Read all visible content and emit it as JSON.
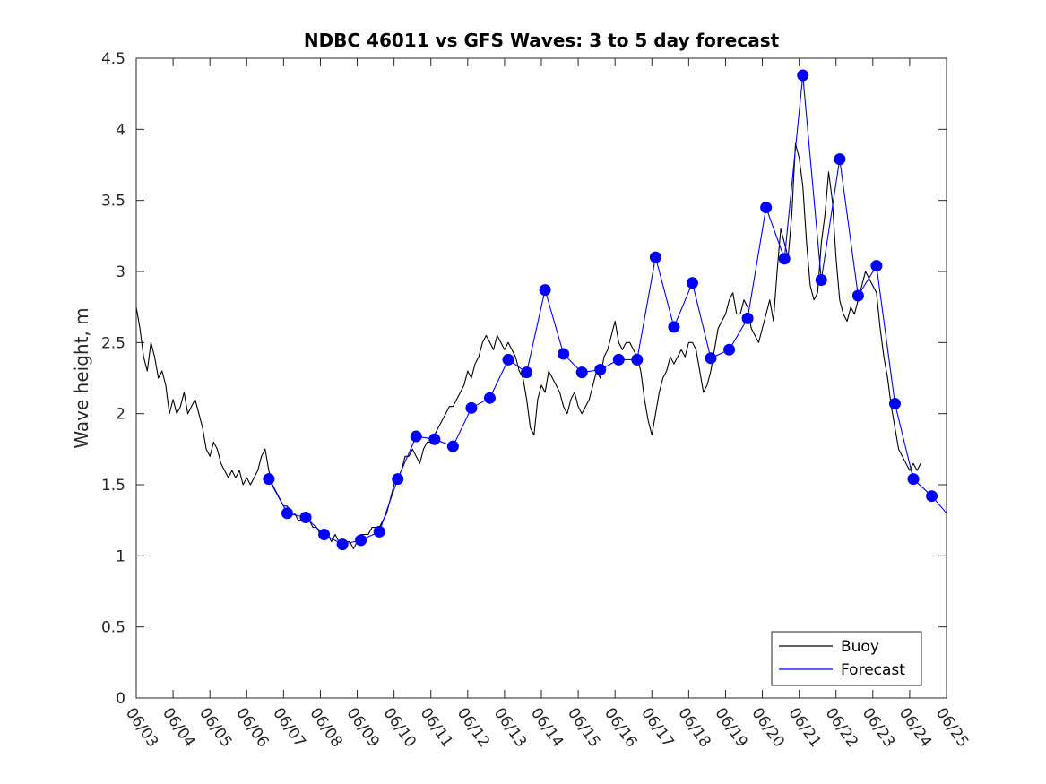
{
  "chart_data": {
    "type": "line",
    "title": "NDBC 46011 vs GFS Waves: 3 to 5 day forecast",
    "xlabel": "",
    "ylabel": "Wave height, m",
    "xlim": [
      0,
      22
    ],
    "ylim": [
      0,
      4.5
    ],
    "grid": false,
    "legend_position": "bottom-right",
    "x_tick_labels": [
      "06/03",
      "06/04",
      "06/05",
      "06/06",
      "06/07",
      "06/08",
      "06/09",
      "06/10",
      "06/11",
      "06/12",
      "06/13",
      "06/14",
      "06/15",
      "06/16",
      "06/17",
      "06/18",
      "06/19",
      "06/20",
      "06/21",
      "06/22",
      "06/23",
      "06/24",
      "06/25"
    ],
    "y_ticks": [
      0,
      0.5,
      1,
      1.5,
      2,
      2.5,
      3,
      3.5,
      4,
      4.5
    ],
    "y_tick_labels": [
      "0",
      "0.5",
      "1",
      "1.5",
      "2",
      "2.5",
      "3",
      "3.5",
      "4",
      "4.5"
    ],
    "legend": [
      "Buoy",
      "Forecast"
    ],
    "colors": {
      "buoy": "#000000",
      "forecast": "#0000ff",
      "axis": "#262626"
    },
    "series": [
      {
        "name": "Buoy",
        "color": "#000000",
        "points": [
          [
            0.0,
            2.75
          ],
          [
            0.1,
            2.6
          ],
          [
            0.2,
            2.4
          ],
          [
            0.3,
            2.3
          ],
          [
            0.4,
            2.5
          ],
          [
            0.5,
            2.4
          ],
          [
            0.6,
            2.25
          ],
          [
            0.7,
            2.3
          ],
          [
            0.8,
            2.2
          ],
          [
            0.9,
            2.0
          ],
          [
            1.0,
            2.1
          ],
          [
            1.1,
            2.0
          ],
          [
            1.2,
            2.05
          ],
          [
            1.3,
            2.15
          ],
          [
            1.4,
            2.0
          ],
          [
            1.5,
            2.05
          ],
          [
            1.6,
            2.1
          ],
          [
            1.7,
            2.0
          ],
          [
            1.8,
            1.9
          ],
          [
            1.9,
            1.75
          ],
          [
            2.0,
            1.7
          ],
          [
            2.1,
            1.8
          ],
          [
            2.2,
            1.75
          ],
          [
            2.3,
            1.65
          ],
          [
            2.4,
            1.6
          ],
          [
            2.5,
            1.55
          ],
          [
            2.6,
            1.6
          ],
          [
            2.7,
            1.55
          ],
          [
            2.8,
            1.6
          ],
          [
            2.9,
            1.5
          ],
          [
            3.0,
            1.55
          ],
          [
            3.1,
            1.5
          ],
          [
            3.2,
            1.55
          ],
          [
            3.3,
            1.6
          ],
          [
            3.4,
            1.7
          ],
          [
            3.5,
            1.75
          ],
          [
            3.6,
            1.6
          ],
          [
            3.7,
            1.5
          ],
          [
            3.8,
            1.45
          ],
          [
            3.9,
            1.4
          ],
          [
            4.0,
            1.35
          ],
          [
            4.1,
            1.35
          ],
          [
            4.2,
            1.3
          ],
          [
            4.3,
            1.3
          ],
          [
            4.4,
            1.25
          ],
          [
            4.5,
            1.25
          ],
          [
            4.6,
            1.3
          ],
          [
            4.7,
            1.25
          ],
          [
            4.8,
            1.2
          ],
          [
            4.9,
            1.2
          ],
          [
            5.0,
            1.15
          ],
          [
            5.1,
            1.15
          ],
          [
            5.2,
            1.15
          ],
          [
            5.3,
            1.1
          ],
          [
            5.4,
            1.15
          ],
          [
            5.5,
            1.1
          ],
          [
            5.6,
            1.1
          ],
          [
            5.7,
            1.1
          ],
          [
            5.8,
            1.1
          ],
          [
            5.9,
            1.05
          ],
          [
            6.0,
            1.1
          ],
          [
            6.1,
            1.15
          ],
          [
            6.2,
            1.15
          ],
          [
            6.3,
            1.15
          ],
          [
            6.4,
            1.2
          ],
          [
            6.5,
            1.2
          ],
          [
            6.6,
            1.2
          ],
          [
            6.7,
            1.25
          ],
          [
            6.8,
            1.3
          ],
          [
            6.9,
            1.4
          ],
          [
            7.0,
            1.5
          ],
          [
            7.1,
            1.55
          ],
          [
            7.2,
            1.6
          ],
          [
            7.3,
            1.7
          ],
          [
            7.4,
            1.7
          ],
          [
            7.5,
            1.75
          ],
          [
            7.6,
            1.7
          ],
          [
            7.7,
            1.65
          ],
          [
            7.8,
            1.75
          ],
          [
            7.9,
            1.8
          ],
          [
            8.0,
            1.8
          ],
          [
            8.1,
            1.85
          ],
          [
            8.2,
            1.9
          ],
          [
            8.3,
            1.95
          ],
          [
            8.4,
            2.0
          ],
          [
            8.5,
            2.05
          ],
          [
            8.6,
            2.05
          ],
          [
            8.7,
            2.1
          ],
          [
            8.8,
            2.15
          ],
          [
            8.9,
            2.2
          ],
          [
            9.0,
            2.3
          ],
          [
            9.1,
            2.25
          ],
          [
            9.2,
            2.35
          ],
          [
            9.3,
            2.4
          ],
          [
            9.4,
            2.5
          ],
          [
            9.5,
            2.55
          ],
          [
            9.6,
            2.5
          ],
          [
            9.7,
            2.45
          ],
          [
            9.8,
            2.55
          ],
          [
            9.9,
            2.5
          ],
          [
            10.0,
            2.45
          ],
          [
            10.1,
            2.5
          ],
          [
            10.2,
            2.45
          ],
          [
            10.3,
            2.4
          ],
          [
            10.4,
            2.3
          ],
          [
            10.5,
            2.25
          ],
          [
            10.6,
            2.1
          ],
          [
            10.7,
            1.9
          ],
          [
            10.8,
            1.85
          ],
          [
            10.9,
            2.1
          ],
          [
            11.0,
            2.2
          ],
          [
            11.1,
            2.15
          ],
          [
            11.2,
            2.3
          ],
          [
            11.3,
            2.25
          ],
          [
            11.4,
            2.2
          ],
          [
            11.5,
            2.15
          ],
          [
            11.6,
            2.05
          ],
          [
            11.7,
            2.0
          ],
          [
            11.8,
            2.1
          ],
          [
            11.9,
            2.15
          ],
          [
            12.0,
            2.05
          ],
          [
            12.1,
            2.0
          ],
          [
            12.2,
            2.05
          ],
          [
            12.3,
            2.1
          ],
          [
            12.4,
            2.2
          ],
          [
            12.5,
            2.3
          ],
          [
            12.6,
            2.25
          ],
          [
            12.7,
            2.4
          ],
          [
            12.8,
            2.45
          ],
          [
            12.9,
            2.55
          ],
          [
            13.0,
            2.65
          ],
          [
            13.1,
            2.5
          ],
          [
            13.2,
            2.45
          ],
          [
            13.3,
            2.5
          ],
          [
            13.4,
            2.5
          ],
          [
            13.5,
            2.45
          ],
          [
            13.6,
            2.4
          ],
          [
            13.7,
            2.3
          ],
          [
            13.8,
            2.1
          ],
          [
            13.9,
            1.95
          ],
          [
            14.0,
            1.85
          ],
          [
            14.1,
            2.0
          ],
          [
            14.2,
            2.15
          ],
          [
            14.3,
            2.25
          ],
          [
            14.4,
            2.3
          ],
          [
            14.5,
            2.4
          ],
          [
            14.6,
            2.35
          ],
          [
            14.7,
            2.4
          ],
          [
            14.8,
            2.45
          ],
          [
            14.9,
            2.4
          ],
          [
            15.0,
            2.5
          ],
          [
            15.1,
            2.5
          ],
          [
            15.2,
            2.45
          ],
          [
            15.3,
            2.3
          ],
          [
            15.4,
            2.15
          ],
          [
            15.5,
            2.2
          ],
          [
            15.6,
            2.3
          ],
          [
            15.7,
            2.45
          ],
          [
            15.8,
            2.6
          ],
          [
            15.9,
            2.65
          ],
          [
            16.0,
            2.7
          ],
          [
            16.1,
            2.8
          ],
          [
            16.2,
            2.85
          ],
          [
            16.3,
            2.7
          ],
          [
            16.4,
            2.7
          ],
          [
            16.5,
            2.8
          ],
          [
            16.6,
            2.75
          ],
          [
            16.7,
            2.6
          ],
          [
            16.8,
            2.55
          ],
          [
            16.9,
            2.5
          ],
          [
            17.0,
            2.6
          ],
          [
            17.1,
            2.7
          ],
          [
            17.2,
            2.8
          ],
          [
            17.3,
            2.65
          ],
          [
            17.4,
            3.0
          ],
          [
            17.5,
            3.3
          ],
          [
            17.6,
            3.2
          ],
          [
            17.7,
            3.1
          ],
          [
            17.8,
            3.4
          ],
          [
            17.9,
            3.9
          ],
          [
            18.0,
            3.8
          ],
          [
            18.1,
            3.6
          ],
          [
            18.2,
            3.2
          ],
          [
            18.3,
            2.9
          ],
          [
            18.4,
            2.8
          ],
          [
            18.5,
            2.85
          ],
          [
            18.6,
            3.2
          ],
          [
            18.7,
            3.4
          ],
          [
            18.8,
            3.7
          ],
          [
            18.9,
            3.5
          ],
          [
            19.0,
            3.1
          ],
          [
            19.1,
            2.8
          ],
          [
            19.2,
            2.7
          ],
          [
            19.3,
            2.65
          ],
          [
            19.4,
            2.75
          ],
          [
            19.5,
            2.7
          ],
          [
            19.6,
            2.8
          ],
          [
            19.7,
            2.9
          ],
          [
            19.8,
            3.0
          ],
          [
            19.9,
            2.95
          ],
          [
            20.0,
            2.9
          ],
          [
            20.1,
            2.85
          ],
          [
            20.2,
            2.6
          ],
          [
            20.3,
            2.4
          ],
          [
            20.4,
            2.25
          ],
          [
            20.5,
            2.05
          ],
          [
            20.6,
            1.9
          ],
          [
            20.7,
            1.75
          ],
          [
            20.8,
            1.7
          ],
          [
            20.9,
            1.65
          ],
          [
            21.0,
            1.6
          ],
          [
            21.1,
            1.65
          ],
          [
            21.2,
            1.6
          ],
          [
            21.3,
            1.65
          ]
        ]
      },
      {
        "name": "Forecast",
        "color": "#0000ff",
        "points": [
          [
            3.6,
            1.54
          ],
          [
            4.1,
            1.3
          ],
          [
            4.6,
            1.27
          ],
          [
            5.1,
            1.15
          ],
          [
            5.6,
            1.08
          ],
          [
            6.1,
            1.11
          ],
          [
            6.6,
            1.17
          ],
          [
            7.1,
            1.54
          ],
          [
            7.6,
            1.84
          ],
          [
            8.1,
            1.82
          ],
          [
            8.6,
            1.77
          ],
          [
            9.1,
            2.04
          ],
          [
            9.6,
            2.11
          ],
          [
            10.1,
            2.38
          ],
          [
            10.6,
            2.29
          ],
          [
            11.1,
            2.87
          ],
          [
            11.6,
            2.42
          ],
          [
            12.1,
            2.29
          ],
          [
            12.6,
            2.31
          ],
          [
            13.1,
            2.38
          ],
          [
            13.6,
            2.38
          ],
          [
            14.1,
            3.1
          ],
          [
            14.6,
            2.61
          ],
          [
            15.1,
            2.92
          ],
          [
            15.6,
            2.39
          ],
          [
            16.1,
            2.45
          ],
          [
            16.6,
            2.67
          ],
          [
            17.1,
            3.45
          ],
          [
            17.6,
            3.09
          ],
          [
            18.1,
            4.38
          ],
          [
            18.6,
            2.94
          ],
          [
            19.1,
            3.79
          ],
          [
            19.6,
            2.83
          ],
          [
            20.1,
            3.04
          ],
          [
            20.6,
            2.07
          ],
          [
            21.1,
            1.54
          ],
          [
            21.6,
            1.42
          ],
          [
            22.0,
            1.3
          ]
        ]
      }
    ],
    "forecast_markers": [
      [
        3.6,
        1.54
      ],
      [
        4.1,
        1.3
      ],
      [
        4.6,
        1.27
      ],
      [
        5.1,
        1.15
      ],
      [
        5.6,
        1.08
      ],
      [
        6.1,
        1.11
      ],
      [
        6.6,
        1.17
      ],
      [
        7.1,
        1.54
      ],
      [
        7.6,
        1.84
      ],
      [
        8.1,
        1.82
      ],
      [
        8.6,
        1.77
      ],
      [
        9.1,
        2.04
      ],
      [
        9.6,
        2.11
      ],
      [
        10.1,
        2.38
      ],
      [
        10.6,
        2.29
      ],
      [
        11.1,
        2.87
      ],
      [
        11.6,
        2.42
      ],
      [
        12.1,
        2.29
      ],
      [
        12.6,
        2.31
      ],
      [
        13.1,
        2.38
      ],
      [
        13.6,
        2.38
      ],
      [
        14.1,
        3.1
      ],
      [
        14.6,
        2.61
      ],
      [
        15.1,
        2.92
      ],
      [
        15.6,
        2.39
      ],
      [
        16.1,
        2.45
      ],
      [
        16.6,
        2.67
      ],
      [
        17.1,
        3.45
      ],
      [
        17.6,
        3.09
      ],
      [
        18.1,
        4.38
      ],
      [
        18.6,
        2.94
      ],
      [
        19.1,
        3.79
      ],
      [
        19.6,
        2.83
      ],
      [
        20.1,
        3.04
      ],
      [
        20.6,
        2.07
      ],
      [
        21.1,
        1.54
      ],
      [
        21.6,
        1.42
      ]
    ]
  }
}
